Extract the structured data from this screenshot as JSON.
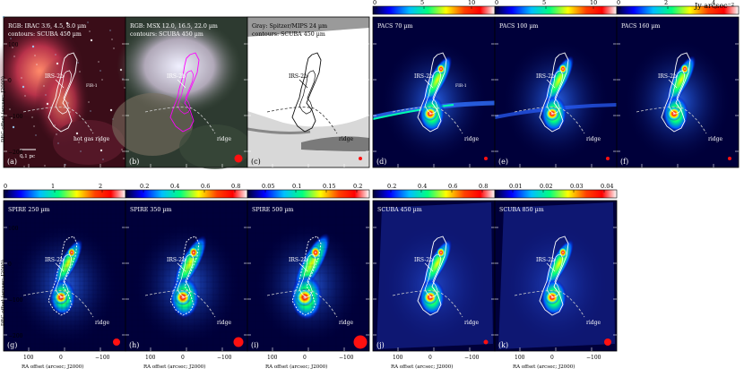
{
  "units_label": "Jy arcsec⁻²",
  "axis": {
    "ylabel": "DEC offset (arcsec; J2000)",
    "xlabel": "RA offset (arcsec; J2000)",
    "yticks": [
      "100",
      "0",
      "−100",
      "−200"
    ],
    "xticks": [
      "100",
      "0",
      "−100"
    ]
  },
  "colors": {
    "cbar": [
      "#000033",
      "#0000ff",
      "#00bfff",
      "#00ff80",
      "#ffff00",
      "#ff4000",
      "#ff0000",
      "#ffffff"
    ],
    "contour_white": "#ffffff",
    "contour_magenta": "#ff00ff",
    "contour_black": "#111111"
  },
  "panels": [
    {
      "letter": "(a)",
      "title": [
        "RGB: IRAC 3.6, 4.5, 8.0 µm",
        "contours: SCUBA 450 µm"
      ],
      "labels": {
        "source": "IRS-2b",
        "fir": "FIR-1",
        "ridge": "hot gas ridge",
        "scale": "0.1 pc"
      },
      "cbar": null,
      "style": "rgb_red"
    },
    {
      "letter": "(b)",
      "title": [
        "RGB: MSX 12.0, 16.5, 22.0 µm",
        "contours: SCUBA 450 µm"
      ],
      "labels": {
        "source": "IRS-2b",
        "ridge": "ridge"
      },
      "cbar": null,
      "style": "rgb_msx"
    },
    {
      "letter": "(c)",
      "title": [
        "Gray: Spitzer/MIPS 24 µm",
        "contours: SCUBA 450 µm"
      ],
      "labels": {
        "source": "IRS-2b",
        "ridge": "ridge"
      },
      "cbar": null,
      "style": "gray"
    },
    {
      "letter": "(d)",
      "title": [
        "PACS 70 µm"
      ],
      "labels": {
        "source": "IRS-2b",
        "fir": "FIR-1",
        "ridge": "ridge"
      },
      "cbar": [
        "0",
        "5",
        "10"
      ],
      "style": "pacs70"
    },
    {
      "letter": "(e)",
      "title": [
        "PACS 100 µm"
      ],
      "labels": {
        "source": "IRS-2b",
        "ridge": "ridge"
      },
      "cbar": [
        "0",
        "5",
        "10"
      ],
      "style": "pacs100"
    },
    {
      "letter": "(f)",
      "title": [
        "PACS 160 µm"
      ],
      "labels": {
        "source": "IRS-2b",
        "ridge": "ridge"
      },
      "cbar": [
        "0",
        "2",
        "4"
      ],
      "style": "pacs160"
    },
    {
      "letter": "(g)",
      "title": [
        "SPIRE 250 µm"
      ],
      "labels": {
        "source": "IRS-2b",
        "ridge": "ridge"
      },
      "cbar": [
        "0",
        "1",
        "2"
      ],
      "style": "spire250"
    },
    {
      "letter": "(h)",
      "title": [
        "SPIRE 350 µm"
      ],
      "labels": {
        "source": "IRS-2b",
        "ridge": "ridge"
      },
      "cbar": [
        "0.2",
        "0.4",
        "0.6",
        "0.8"
      ],
      "style": "spire350"
    },
    {
      "letter": "(i)",
      "title": [
        "SPIRE 500 µm"
      ],
      "labels": {
        "source": "IRS-2b",
        "ridge": "ridge"
      },
      "cbar": [
        "0.05",
        "0.1",
        "0.15",
        "0.2"
      ],
      "style": "spire500"
    },
    {
      "letter": "(j)",
      "title": [
        "SCUBA 450 µm"
      ],
      "labels": {
        "source": "IRS-2b",
        "ridge": "ridge"
      },
      "cbar": [
        "0.2",
        "0.4",
        "0.6",
        "0.8"
      ],
      "style": "scuba450"
    },
    {
      "letter": "(k)",
      "title": [
        "SCUBA 850 µm"
      ],
      "labels": {
        "source": "IRS-2b",
        "ridge": "ridge"
      },
      "cbar": [
        "0.01",
        "0.02",
        "0.03",
        "0.04"
      ],
      "style": "scuba850"
    }
  ]
}
